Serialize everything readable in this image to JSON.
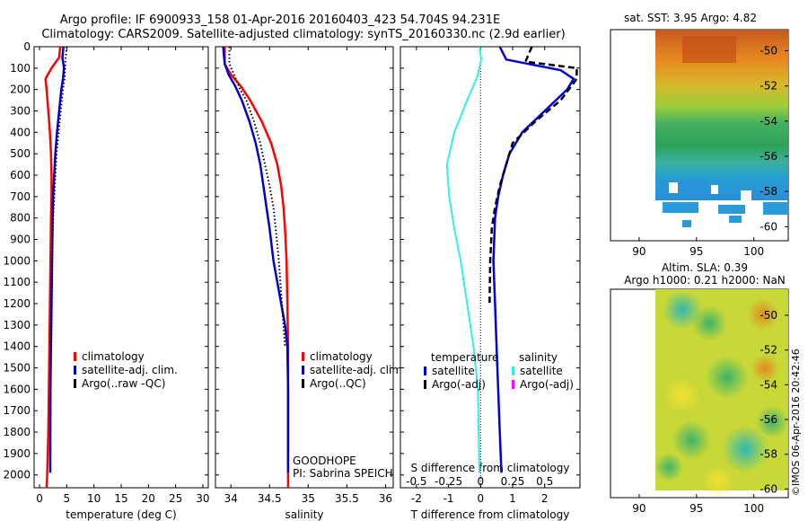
{
  "title_line1": "Argo profile: IF 6900933_158 01-Apr-2016 20160403_423 54.704S 94.231E",
  "title_line2": "Climatology: CARS2009. Satellite-adjusted climatology: synTS_20160330.nc (2.9d earlier)",
  "colors": {
    "climatology": "#ff0000",
    "satellite": "#0000cc",
    "argo": "#000000",
    "temp_diff": "#0000dd",
    "sal_diff": "#33eeee",
    "argo_sal_adj": "#ff00ff"
  },
  "chart_data": [
    {
      "id": "temperature",
      "type": "line",
      "xlabel": "temperature (deg C)",
      "xlim": [
        -1,
        31
      ],
      "xticks": [
        0,
        5,
        10,
        15,
        20,
        25,
        30
      ],
      "ylim": [
        0,
        2060
      ],
      "yticks": [
        0,
        100,
        200,
        300,
        400,
        500,
        600,
        700,
        800,
        900,
        1000,
        1100,
        1200,
        1300,
        1400,
        1500,
        1600,
        1700,
        1800,
        1900,
        2000
      ],
      "legend": [
        "climatology",
        "satellite-adj. clim.",
        "Argo(..raw -QC)"
      ],
      "series": [
        {
          "name": "climatology",
          "color": "climatology",
          "style": "solid",
          "x": [
            3.8,
            3.6,
            2.2,
            1.1,
            1.3,
            1.6,
            1.9,
            2.1,
            2.2,
            2.2,
            2.1,
            2.0,
            1.9,
            1.8,
            1.7,
            1.6,
            1.5,
            1.4,
            1.3
          ],
          "y": [
            0,
            50,
            100,
            150,
            200,
            300,
            400,
            500,
            600,
            700,
            800,
            1000,
            1200,
            1400,
            1600,
            1800,
            1900,
            2000,
            2060
          ]
        },
        {
          "name": "satellite-adj. clim.",
          "color": "satellite",
          "style": "solid",
          "x": [
            4.4,
            4.2,
            4.5,
            4.3,
            4.0,
            3.6,
            3.2,
            2.9,
            2.7,
            2.5,
            2.4,
            2.3,
            2.2,
            2.1,
            2.0,
            1.95
          ],
          "y": [
            0,
            50,
            100,
            150,
            200,
            300,
            400,
            500,
            600,
            700,
            800,
            1000,
            1200,
            1400,
            1600,
            1990
          ]
        },
        {
          "name": "Argo(..raw -QC)",
          "color": "argo",
          "style": "dotted",
          "x": [
            5.0,
            4.8,
            4.7,
            4.6,
            4.3,
            3.9,
            3.5,
            3.1,
            2.9,
            2.7,
            2.5,
            2.3,
            2.2,
            2.1
          ],
          "y": [
            0,
            50,
            100,
            150,
            200,
            300,
            400,
            500,
            600,
            700,
            800,
            1000,
            1200,
            1400
          ]
        }
      ]
    },
    {
      "id": "salinity",
      "type": "line",
      "xlabel": "salinity",
      "xlim": [
        33.8,
        36.1
      ],
      "xticks": [
        34,
        34.5,
        35,
        35.5,
        36
      ],
      "xtick_labels": [
        "34",
        "34.5",
        "35",
        "35.5",
        "36"
      ],
      "ylim": [
        0,
        2060
      ],
      "legend": [
        "climatology",
        "satellite-adj. clim.",
        "Argo(..QC)"
      ],
      "annotation": [
        "GOODHOPE",
        "PI: Sabrina SPEICH"
      ],
      "series": [
        {
          "name": "climatology",
          "color": "climatology",
          "style": "solid",
          "x": [
            33.92,
            33.92,
            34.0,
            34.12,
            34.25,
            34.4,
            34.52,
            34.6,
            34.65,
            34.68,
            34.7,
            34.72,
            34.73,
            34.74,
            34.74,
            34.74,
            34.74
          ],
          "y": [
            0,
            80,
            130,
            180,
            250,
            350,
            450,
            550,
            650,
            750,
            850,
            1000,
            1200,
            1400,
            1600,
            1800,
            2060
          ]
        },
        {
          "name": "satellite-adj. clim.",
          "color": "satellite",
          "style": "solid",
          "x": [
            33.9,
            33.92,
            33.97,
            34.05,
            34.14,
            34.24,
            34.32,
            34.38,
            34.42,
            34.46,
            34.5,
            34.55,
            34.6,
            34.65,
            34.7,
            34.73,
            34.74,
            34.74
          ],
          "y": [
            0,
            80,
            130,
            180,
            250,
            350,
            450,
            550,
            650,
            750,
            850,
            1000,
            1100,
            1200,
            1300,
            1400,
            1600,
            1990
          ]
        },
        {
          "name": "Argo(..QC)",
          "color": "argo",
          "style": "dotted",
          "x": [
            33.98,
            33.98,
            34.04,
            34.12,
            34.2,
            34.3,
            34.38,
            34.44,
            34.5,
            34.55,
            34.58,
            34.62,
            34.66,
            34.7
          ],
          "y": [
            0,
            80,
            130,
            200,
            250,
            350,
            450,
            550,
            650,
            750,
            850,
            1000,
            1200,
            1400
          ]
        }
      ]
    },
    {
      "id": "differences",
      "type": "line",
      "xlabel": "T difference from climatology",
      "xlim": [
        -2.5,
        3.1
      ],
      "xticks": [
        -2,
        -1,
        0,
        1,
        2
      ],
      "xlabel_top": "S difference from climatology",
      "xticks_top": [
        -0.5,
        -0.25,
        0,
        0.25,
        0.5
      ],
      "xtick_labels_top": [
        "-0.5",
        "-0.25",
        "0",
        "0.25",
        "0.5"
      ],
      "s_to_t_scale": 4,
      "ylim": [
        0,
        2060
      ],
      "legend_groups": [
        {
          "title": "temperature",
          "items": [
            "satellite",
            "Argo(-adj)"
          ]
        },
        {
          "title": "salinity",
          "items": [
            "satellite",
            "Argo(-adj)"
          ]
        }
      ],
      "series": [
        {
          "name": "temperature satellite",
          "color": "temp_diff",
          "style": "solid",
          "width": 2.5,
          "x": [
            0.6,
            0.8,
            2.5,
            2.9,
            2.7,
            2.0,
            1.3,
            0.9,
            0.7,
            0.55,
            0.45,
            0.4,
            0.45,
            0.5,
            0.55,
            0.6,
            0.65
          ],
          "y": [
            0,
            60,
            110,
            150,
            200,
            300,
            400,
            500,
            600,
            700,
            800,
            1000,
            1200,
            1400,
            1600,
            1800,
            1990
          ]
        },
        {
          "name": "temperature Argo(-adj)",
          "color": "argo",
          "style": "dashed",
          "width": 2.5,
          "x": [
            1.6,
            1.4,
            3.0,
            3.0,
            2.5,
            1.7,
            1.0,
            0.8,
            0.6,
            0.45,
            0.35,
            0.3,
            0.28
          ],
          "y": [
            0,
            70,
            100,
            150,
            250,
            350,
            450,
            550,
            650,
            750,
            850,
            1000,
            1200
          ]
        },
        {
          "name": "salinity satellite",
          "color": "sal_diff",
          "style": "solid",
          "width": 2,
          "x": [
            -0.03,
            0.02,
            -0.1,
            -0.42,
            -0.82,
            -1.05,
            -0.98,
            -0.82,
            -0.62,
            -0.42,
            -0.22,
            -0.08,
            -0.04
          ],
          "y": [
            0,
            60,
            140,
            250,
            400,
            550,
            700,
            850,
            1000,
            1200,
            1400,
            1600,
            1990
          ]
        }
      ]
    },
    {
      "id": "sst_map",
      "type": "heatmap",
      "title": "sat. SST: 3.95 Argo: 4.82",
      "xlim": [
        87.5,
        103
      ],
      "ylim": [
        -60.8,
        -48.8
      ],
      "xticks": [
        90,
        95,
        100
      ],
      "yticks": [
        -50,
        -52,
        -54,
        -56,
        -58,
        -60
      ]
    },
    {
      "id": "sla_map",
      "type": "heatmap",
      "title": "Altim. SLA: 0.39",
      "subtitle": "Argo h1000: 0.21 h2000: NaN",
      "xlim": [
        87.5,
        103
      ],
      "ylim": [
        -60.5,
        -48.5
      ],
      "xticks": [
        90,
        95,
        100
      ],
      "yticks": [
        -50,
        -52,
        -54,
        -56,
        -58,
        -60
      ]
    }
  ],
  "watermark": "©IMOS 06-Apr-2016 20:42:46"
}
